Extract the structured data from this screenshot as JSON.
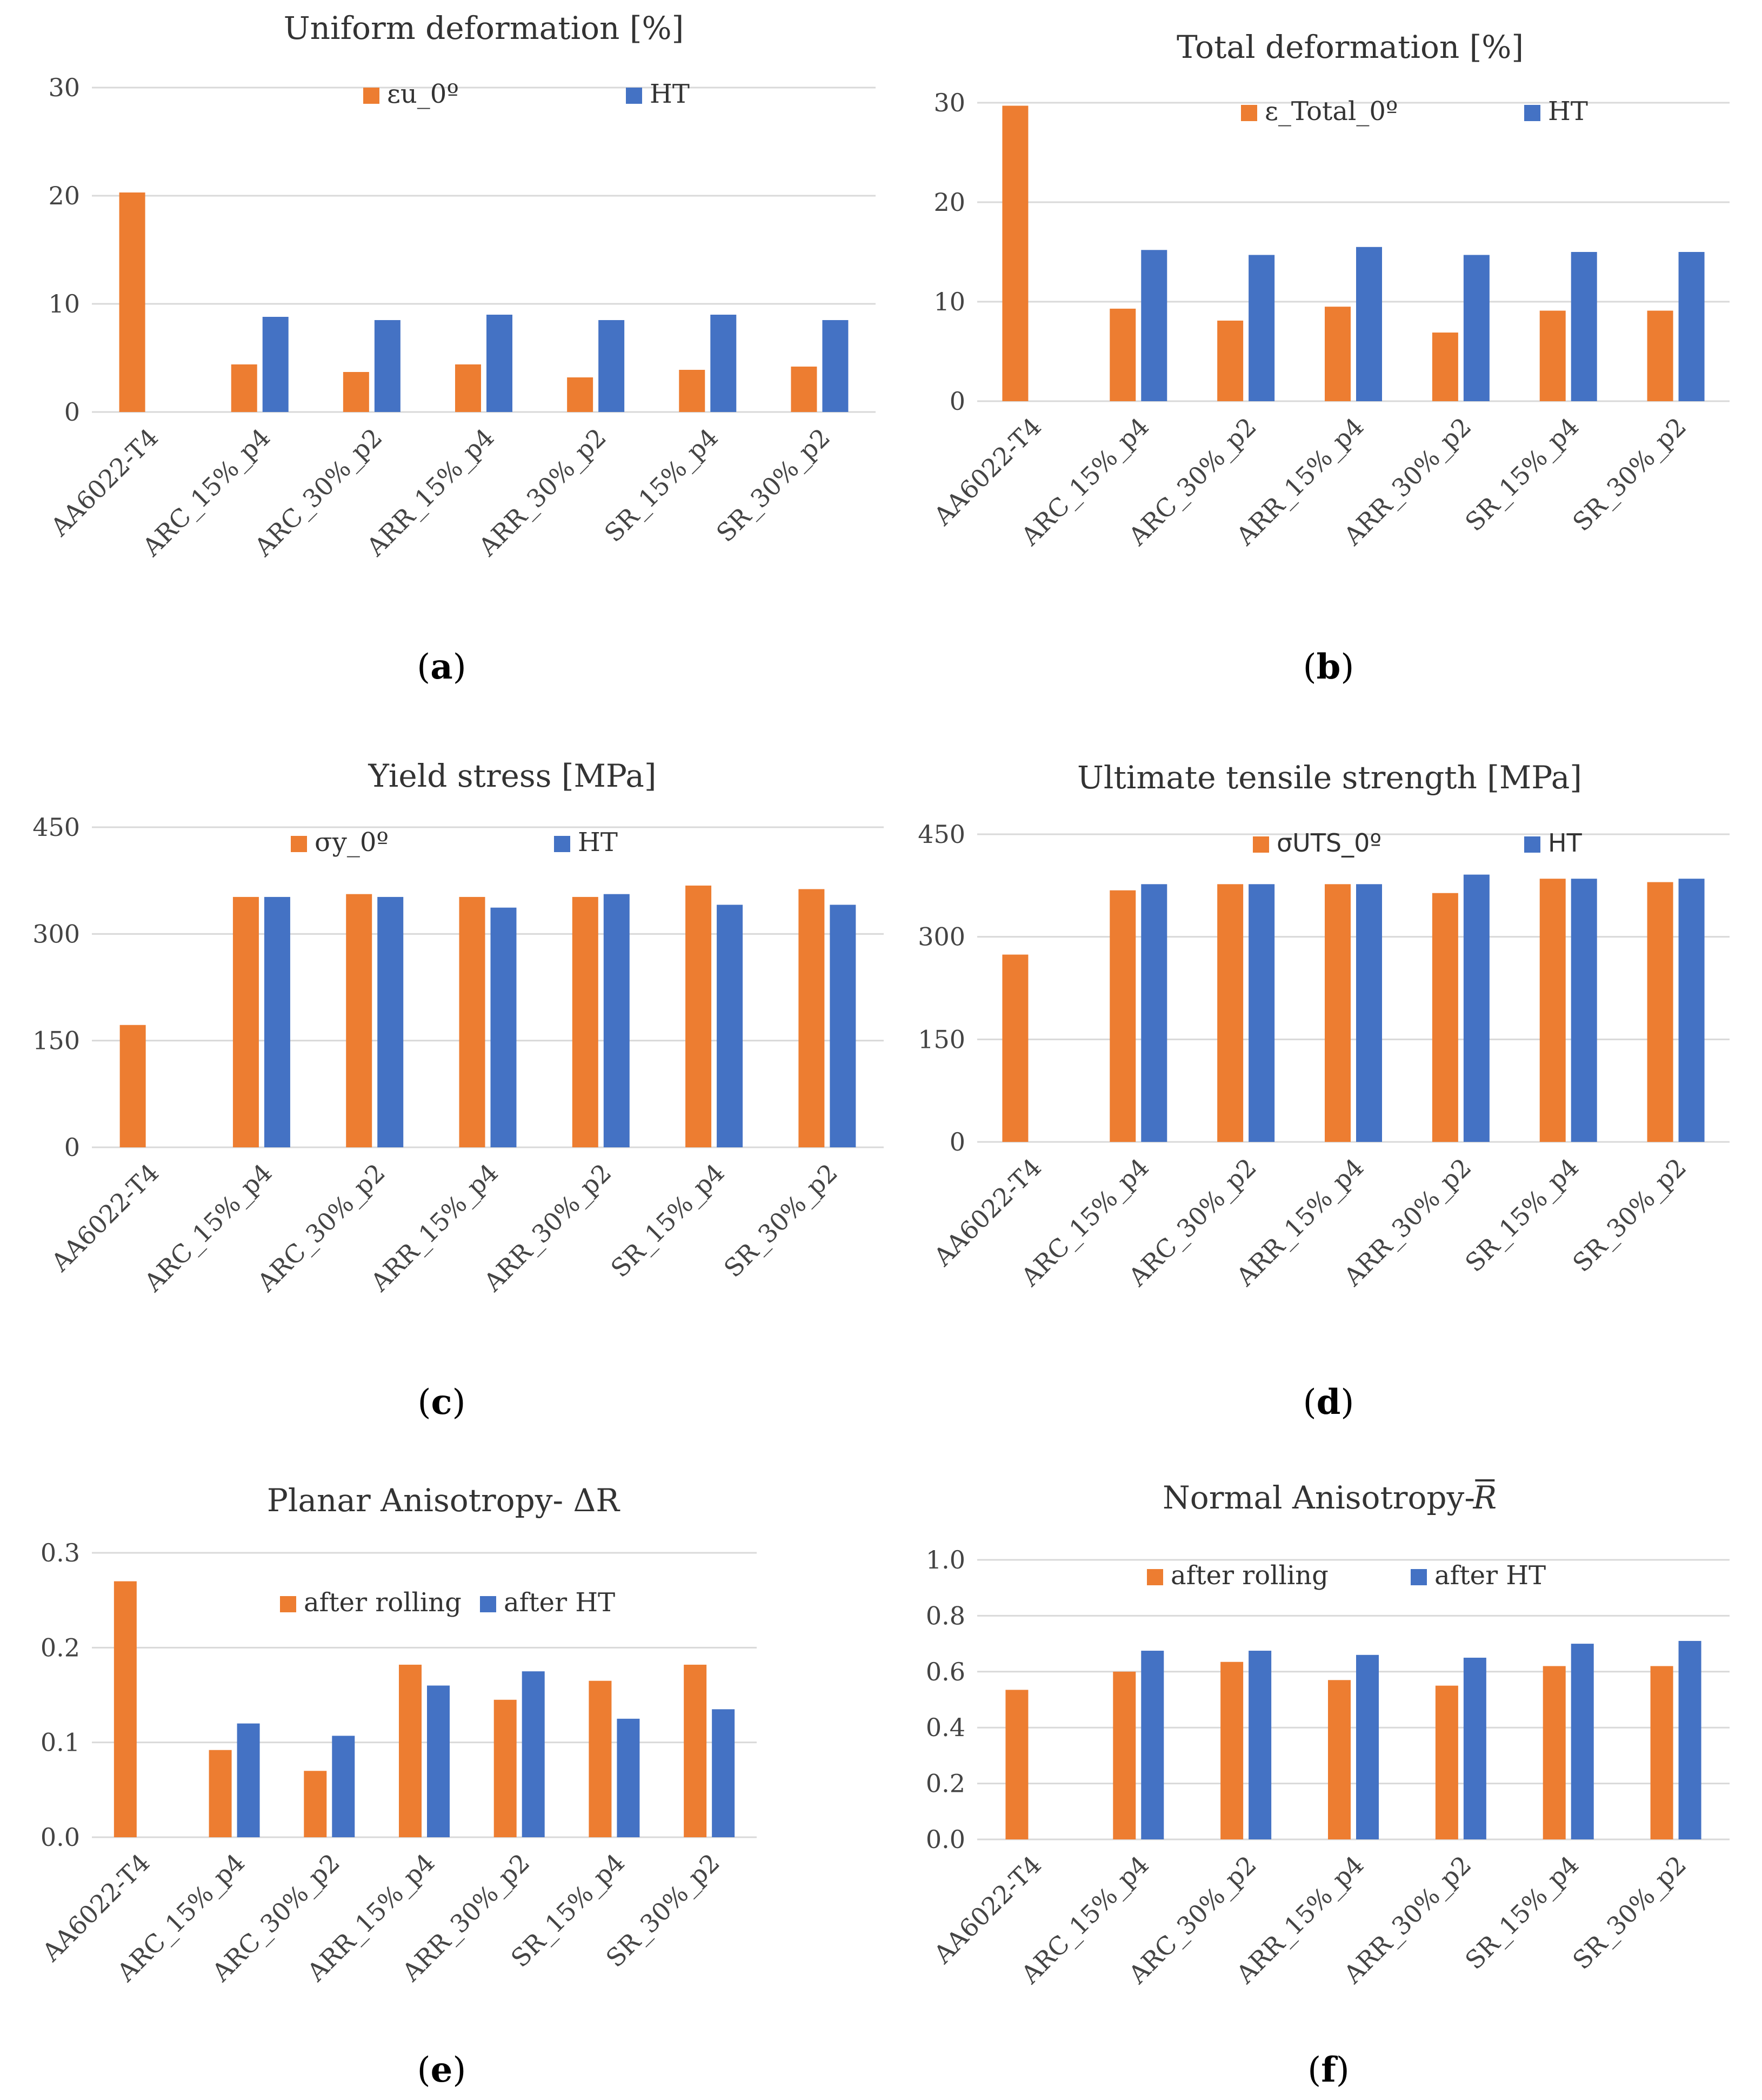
{
  "colors": {
    "orange": "#ED7D31",
    "blue": "#4472C4"
  },
  "chart_data": [
    {
      "type": "bar",
      "panel": "a",
      "title": "Uniform deformation [%]",
      "categories": [
        "AA6022-T4",
        "ARC_15%_p4",
        "ARC_30%_p2",
        "ARR_15%_p4",
        "ARR_30%_p2",
        "SR_15%_p4",
        "SR_30%_p2"
      ],
      "series": [
        {
          "name": "εu_0º",
          "color": "#ED7D31",
          "values": [
            20.3,
            4.4,
            3.7,
            4.4,
            3.2,
            3.9,
            4.2
          ]
        },
        {
          "name": "HT",
          "color": "#4472C4",
          "values": [
            null,
            8.8,
            8.5,
            9.0,
            8.5,
            9.0,
            8.5
          ]
        }
      ],
      "ylim": [
        0,
        30
      ],
      "yticks": [
        "0",
        "10",
        "20",
        "30"
      ],
      "ytick_values": [
        0,
        10,
        20,
        30
      ],
      "xlabel": "",
      "ylabel": "",
      "caption_letter": "a"
    },
    {
      "type": "bar",
      "panel": "b",
      "title": "Total deformation [%]",
      "categories": [
        "AA6022-T4",
        "ARC_15%_p4",
        "ARC_30%_p2",
        "ARR_15%_p4",
        "ARR_30%_p2",
        "SR_15%_p4",
        "SR_30%_p2"
      ],
      "series": [
        {
          "name": "ε_Total_0º",
          "color": "#ED7D31",
          "values": [
            29.7,
            9.3,
            8.1,
            9.5,
            6.9,
            9.1,
            9.1
          ]
        },
        {
          "name": "HT",
          "color": "#4472C4",
          "values": [
            null,
            15.2,
            14.7,
            15.5,
            14.7,
            15.0,
            15.0
          ]
        }
      ],
      "ylim": [
        0,
        30
      ],
      "yticks": [
        "0",
        "10",
        "20",
        "30"
      ],
      "ytick_values": [
        0,
        10,
        20,
        30
      ],
      "xlabel": "",
      "ylabel": "",
      "caption_letter": "b"
    },
    {
      "type": "bar",
      "panel": "c",
      "title": "Yield stress [MPa]",
      "categories": [
        "AA6022-T4",
        "ARC_15%_p4",
        "ARC_30%_p2",
        "ARR_15%_p4",
        "ARR_30%_p2",
        "SR_15%_p4",
        "SR_30%_p2"
      ],
      "series": [
        {
          "name": "σy_0º",
          "color": "#ED7D31",
          "values": [
            172,
            352,
            356,
            352,
            352,
            368,
            363
          ]
        },
        {
          "name": "HT",
          "color": "#4472C4",
          "values": [
            null,
            352,
            352,
            337,
            356,
            341,
            341
          ]
        }
      ],
      "ylim": [
        0,
        450
      ],
      "yticks": [
        "0",
        "150",
        "300",
        "450"
      ],
      "ytick_values": [
        0,
        150,
        300,
        450
      ],
      "xlabel": "",
      "ylabel": "",
      "caption_letter": "c"
    },
    {
      "type": "bar",
      "panel": "d",
      "title": "Ultimate tensile strength [MPa]",
      "categories": [
        "AA6022-T4",
        "ARC_15%_p4",
        "ARC_30%_p2",
        "ARR_15%_p4",
        "ARR_30%_p2",
        "SR_15%_p4",
        "SR_30%_p2"
      ],
      "series": [
        {
          "name": "σUTS_0º",
          "color": "#ED7D31",
          "values": [
            274,
            368,
            377,
            377,
            364,
            385,
            380
          ]
        },
        {
          "name": "HT",
          "color": "#4472C4",
          "values": [
            null,
            377,
            377,
            377,
            391,
            385,
            385
          ]
        }
      ],
      "ylim": [
        0,
        450
      ],
      "yticks": [
        "0",
        "150",
        "300",
        "450"
      ],
      "ytick_values": [
        0,
        150,
        300,
        450
      ],
      "xlabel": "",
      "ylabel": "",
      "caption_letter": "d"
    },
    {
      "type": "bar",
      "panel": "e",
      "title": "Planar Anisotropy- ΔR",
      "categories": [
        "AA6022-T4",
        "ARC_15%_p4",
        "ARC_30%_p2",
        "ARR_15%_p4",
        "ARR_30%_p2",
        "SR_15%_p4",
        "SR_30%_p2"
      ],
      "series": [
        {
          "name": "after rolling",
          "color": "#ED7D31",
          "values": [
            0.27,
            0.092,
            0.07,
            0.182,
            0.145,
            0.165,
            0.182
          ]
        },
        {
          "name": "after HT",
          "color": "#4472C4",
          "values": [
            null,
            0.12,
            0.107,
            0.16,
            0.175,
            0.125,
            0.135
          ]
        }
      ],
      "ylim": [
        0,
        0.3
      ],
      "yticks": [
        "0.0",
        "0.1",
        "0.2",
        "0.3"
      ],
      "ytick_values": [
        0,
        0.1,
        0.2,
        0.3
      ],
      "xlabel": "",
      "ylabel": "",
      "caption_letter": "e"
    },
    {
      "type": "bar",
      "panel": "f",
      "title": "Normal Anisotropy-",
      "title_symbol": "R",
      "categories": [
        "AA6022-T4",
        "ARC_15%_p4",
        "ARC_30%_p2",
        "ARR_15%_p4",
        "ARR_30%_p2",
        "SR_15%_p4",
        "SR_30%_p2"
      ],
      "series": [
        {
          "name": "after rolling",
          "color": "#ED7D31",
          "values": [
            0.535,
            0.6,
            0.635,
            0.57,
            0.55,
            0.62,
            0.62
          ]
        },
        {
          "name": "after HT",
          "color": "#4472C4",
          "values": [
            null,
            0.675,
            0.675,
            0.66,
            0.65,
            0.7,
            0.71
          ]
        }
      ],
      "ylim": [
        0,
        1.0
      ],
      "yticks": [
        "0.0",
        "0.2",
        "0.4",
        "0.6",
        "0.8",
        "1.0"
      ],
      "ytick_values": [
        0,
        0.2,
        0.4,
        0.6,
        0.8,
        1.0
      ],
      "xlabel": "",
      "ylabel": "",
      "caption_letter": "f"
    }
  ]
}
